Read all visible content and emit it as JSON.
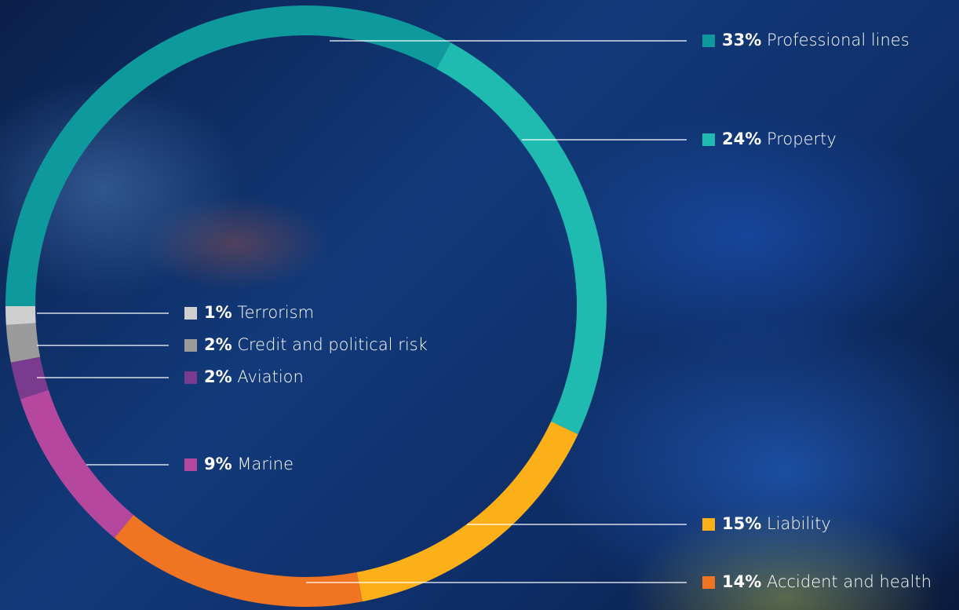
{
  "chart_data": {
    "type": "donut",
    "categories": [
      "Professional lines",
      "Property",
      "Liability",
      "Accident and health",
      "Marine",
      "Aviation",
      "Credit and political risk",
      "Terrorism"
    ],
    "values": [
      33,
      24,
      15,
      14,
      9,
      2,
      2,
      1
    ],
    "value_labels": [
      "33%",
      "24%",
      "15%",
      "14%",
      "9%",
      "2%",
      "2%",
      "1%"
    ],
    "colors": [
      "#0e9a9c",
      "#20bbb0",
      "#fbb01a",
      "#f07522",
      "#b5489e",
      "#7a3a8e",
      "#9b9b9b",
      "#cfcfcf"
    ]
  }
}
